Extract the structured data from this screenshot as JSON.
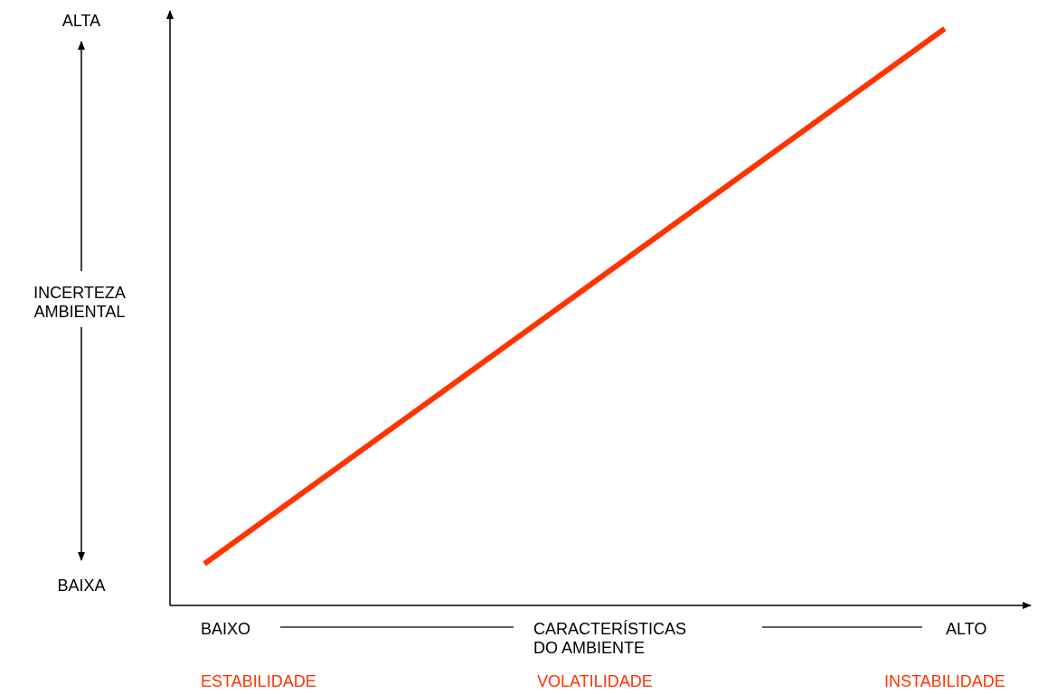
{
  "chart_data": {
    "type": "line",
    "title": "",
    "ylabel": [
      "INCERTEZA",
      "AMBIENTAL"
    ],
    "y_high_label": "ALTA",
    "y_low_label": "BAIXA",
    "xlabel": [
      "CARACTERÍSTICAS",
      "DO AMBIENTE"
    ],
    "x_low_label": "BAIXO",
    "x_high_label": "ALTO",
    "regimes": [
      "ESTABILIDADE",
      "VOLATILIDADE",
      "INSTABILIDADE"
    ],
    "xlim": [
      0,
      1
    ],
    "ylim": [
      0,
      1
    ],
    "grid": false,
    "series": [
      {
        "x": [
          0.04,
          0.9
        ],
        "y": [
          0.07,
          0.97
        ],
        "color": "#ff3300"
      }
    ]
  }
}
